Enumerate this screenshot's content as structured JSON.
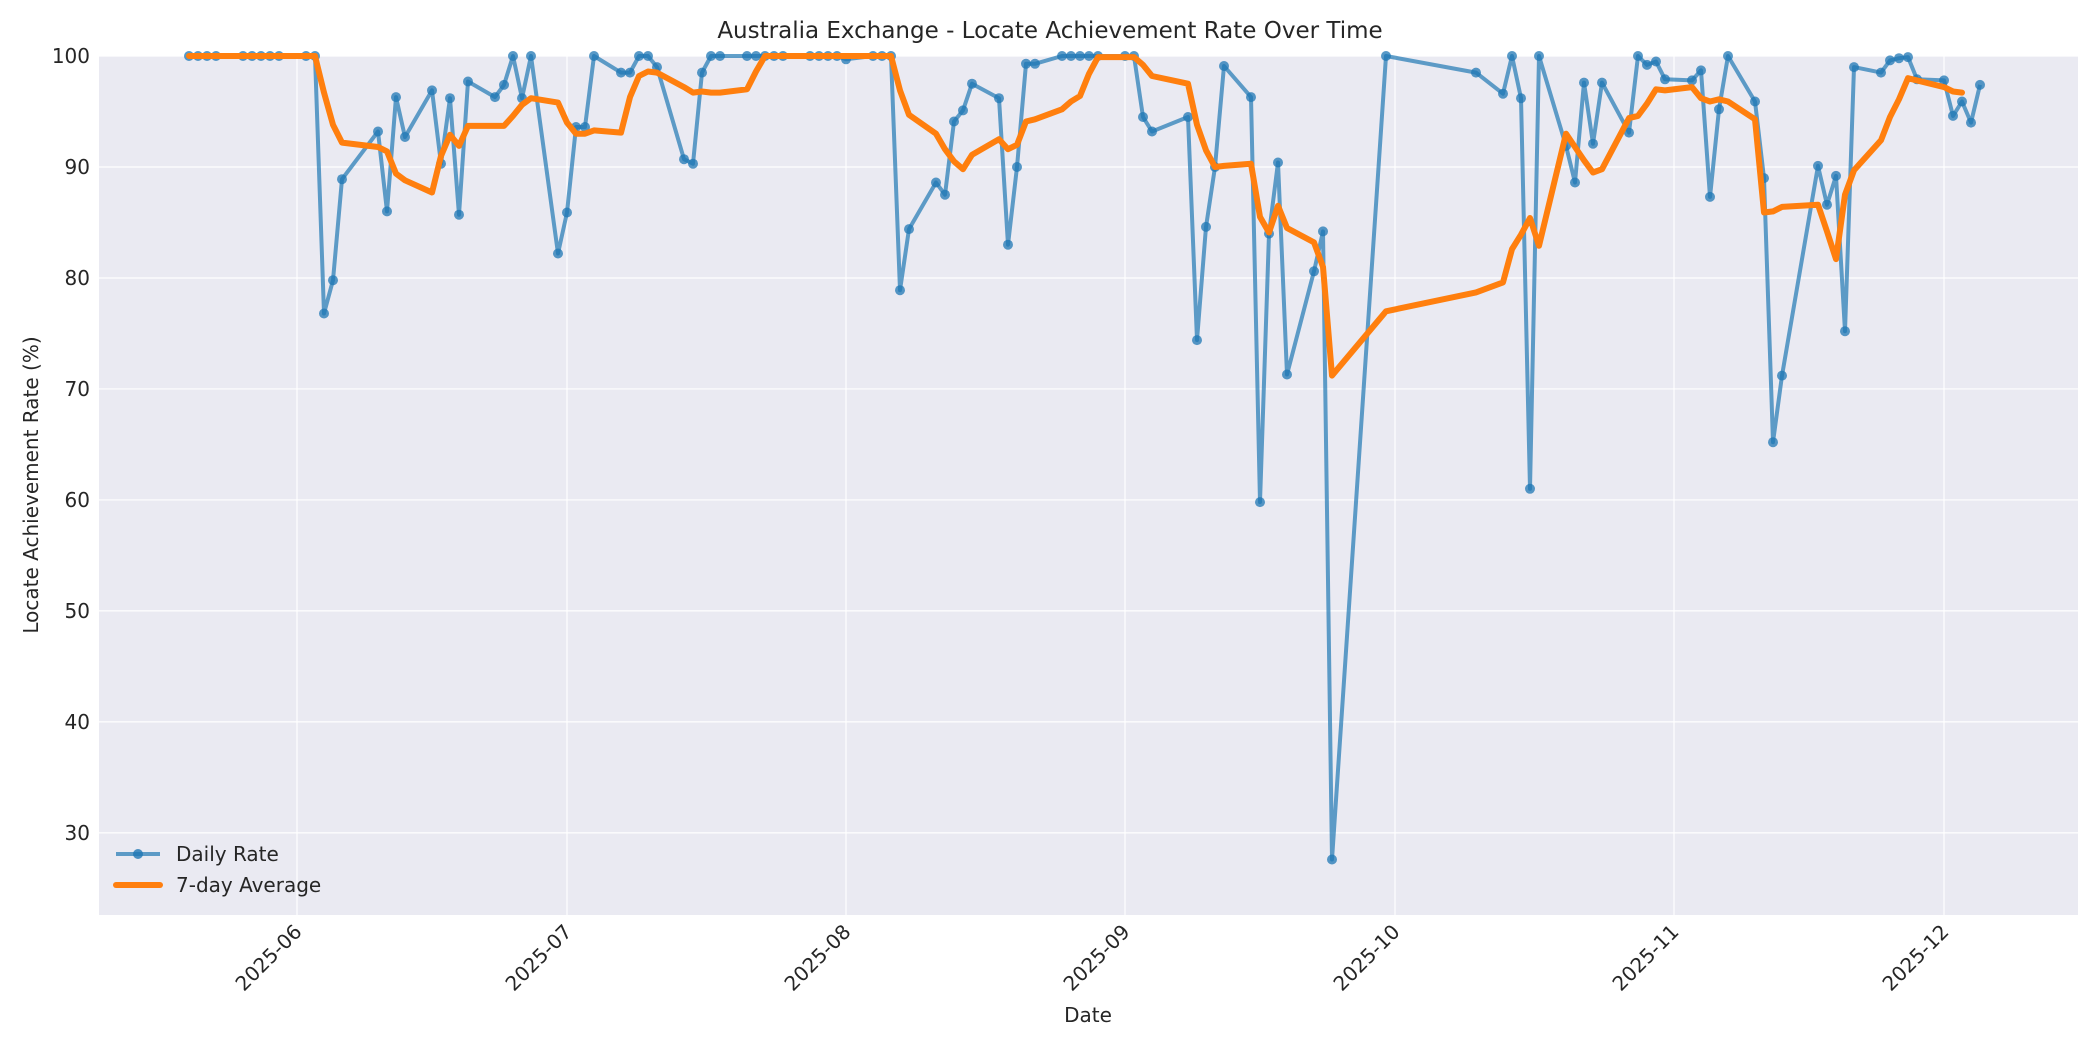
{
  "chart_data": {
    "type": "line",
    "title": "Australia Exchange - Locate Achievement Rate Over Time",
    "xlabel": "Date",
    "ylabel": "Locate Achievement Rate (%)",
    "ylim": [
      22.6,
      100
    ],
    "xlim": [
      "2025-05-11",
      "2025-12-10"
    ],
    "grid": true,
    "legend_position": "lower left",
    "yticks": [
      30,
      40,
      50,
      60,
      70,
      80,
      90,
      100
    ],
    "xticks": [
      "2025-06",
      "2025-07",
      "2025-08",
      "2025-09",
      "2025-10",
      "2025-11",
      "2025-12"
    ],
    "rolling_window": 7,
    "x": [
      "2025-05-20",
      "2025-05-21",
      "2025-05-22",
      "2025-05-23",
      "2025-05-26",
      "2025-05-27",
      "2025-05-28",
      "2025-05-29",
      "2025-05-30",
      "2025-06-02",
      "2025-06-03",
      "2025-06-04",
      "2025-06-05",
      "2025-06-06",
      "2025-06-10",
      "2025-06-11",
      "2025-06-12",
      "2025-06-13",
      "2025-06-16",
      "2025-06-17",
      "2025-06-18",
      "2025-06-19",
      "2025-06-20",
      "2025-06-23",
      "2025-06-24",
      "2025-06-25",
      "2025-06-26",
      "2025-06-27",
      "2025-06-30",
      "2025-07-01",
      "2025-07-02",
      "2025-07-03",
      "2025-07-04",
      "2025-07-07",
      "2025-07-08",
      "2025-07-09",
      "2025-07-10",
      "2025-07-11",
      "2025-07-14",
      "2025-07-15",
      "2025-07-16",
      "2025-07-17",
      "2025-07-18",
      "2025-07-21",
      "2025-07-22",
      "2025-07-23",
      "2025-07-24",
      "2025-07-25",
      "2025-07-28",
      "2025-07-29",
      "2025-07-30",
      "2025-07-31",
      "2025-08-01",
      "2025-08-04",
      "2025-08-05",
      "2025-08-06",
      "2025-08-07",
      "2025-08-08",
      "2025-08-11",
      "2025-08-12",
      "2025-08-13",
      "2025-08-14",
      "2025-08-15",
      "2025-08-18",
      "2025-08-19",
      "2025-08-20",
      "2025-08-21",
      "2025-08-22",
      "2025-08-25",
      "2025-08-26",
      "2025-08-27",
      "2025-08-28",
      "2025-08-29",
      "2025-09-01",
      "2025-09-02",
      "2025-09-03",
      "2025-09-04",
      "2025-09-08",
      "2025-09-09",
      "2025-09-10",
      "2025-09-11",
      "2025-09-12",
      "2025-09-15",
      "2025-09-16",
      "2025-09-17",
      "2025-09-18",
      "2025-09-19",
      "2025-09-22",
      "2025-09-23",
      "2025-09-24",
      "2025-09-30",
      "2025-10-10",
      "2025-10-13",
      "2025-10-14",
      "2025-10-15",
      "2025-10-16",
      "2025-10-17",
      "2025-10-20",
      "2025-10-21",
      "2025-10-22",
      "2025-10-23",
      "2025-10-24",
      "2025-10-27",
      "2025-10-28",
      "2025-10-29",
      "2025-10-30",
      "2025-10-31",
      "2025-11-03",
      "2025-11-04",
      "2025-11-05",
      "2025-11-06",
      "2025-11-07",
      "2025-11-10",
      "2025-11-11",
      "2025-11-12",
      "2025-11-13",
      "2025-11-17",
      "2025-11-18",
      "2025-11-19",
      "2025-11-20",
      "2025-11-21",
      "2025-11-24",
      "2025-11-25",
      "2025-11-26",
      "2025-11-27",
      "2025-11-28",
      "2025-12-01",
      "2025-12-02",
      "2025-12-03",
      "2025-12-04",
      "2025-12-05"
    ],
    "series": [
      {
        "name": "Daily Rate",
        "color": "#1f77b4",
        "marker": "circle",
        "values": [
          100,
          100,
          100,
          100,
          100,
          100,
          100,
          100,
          100,
          100,
          100,
          76.8,
          79.8,
          88.9,
          93.2,
          86.0,
          96.3,
          92.7,
          96.9,
          90.3,
          96.2,
          85.7,
          97.7,
          96.3,
          97.4,
          100,
          96.2,
          100,
          82.2,
          85.9,
          93.6,
          93.6,
          100,
          98.5,
          98.5,
          100,
          100,
          99.0,
          90.7,
          90.3,
          98.5,
          100,
          100,
          100,
          100,
          100,
          100,
          100,
          100,
          100,
          100,
          100,
          99.7,
          100,
          100,
          100,
          78.9,
          84.4,
          88.6,
          87.5,
          94.1,
          95.1,
          97.5,
          96.2,
          83.0,
          90.0,
          99.3,
          99.3,
          100,
          100,
          100,
          100,
          100,
          100,
          100,
          94.5,
          93.2,
          94.5,
          74.4,
          84.6,
          90.0,
          99.1,
          96.3,
          59.8,
          84.0,
          90.4,
          71.3,
          80.6,
          84.2,
          27.6,
          100,
          98.5,
          96.6,
          100,
          96.2,
          61.0,
          100,
          91.9,
          88.6,
          97.6,
          92.1,
          97.6,
          93.1,
          100,
          99.2,
          99.5,
          97.9,
          97.8,
          98.7,
          87.3,
          95.2,
          100,
          95.9,
          89.0,
          65.2,
          71.2,
          90.1,
          86.6,
          89.2,
          75.2,
          99.0,
          98.5,
          99.6,
          99.8,
          99.9,
          97.9,
          97.8,
          94.6,
          95.9,
          94.0,
          97.4
        ]
      },
      {
        "name": "7-day Average",
        "color": "#ff7f0e",
        "values": [
          100,
          100,
          100,
          100,
          100,
          100,
          100,
          100,
          100,
          100,
          100,
          96.7,
          93.8,
          92.2,
          91.8,
          91.4,
          89.4,
          88.8,
          87.7,
          91.0,
          92.9,
          91.9,
          93.7,
          93.7,
          93.7,
          94.6,
          95.6,
          96.2,
          95.8,
          94.0,
          93.0,
          93.0,
          93.3,
          93.1,
          96.3,
          98.2,
          98.6,
          98.5,
          97.2,
          96.7,
          96.8,
          96.7,
          96.7,
          97.0,
          98.6,
          100,
          100,
          100,
          100,
          100,
          100,
          100,
          100,
          100,
          100,
          100,
          96.9,
          94.7,
          93.0,
          91.6,
          90.5,
          89.8,
          91.1,
          92.5,
          91.6,
          92.0,
          94.1,
          94.3,
          95.2,
          95.9,
          96.4,
          98.4,
          99.9,
          99.9,
          99.9,
          99.2,
          98.2,
          97.5,
          93.8,
          91.5,
          90.0,
          90.1,
          90.3,
          85.5,
          84.1,
          86.5,
          84.5,
          83.2,
          81.0,
          71.2,
          77.0,
          78.7,
          79.6,
          82.6,
          83.9,
          85.4,
          82.9,
          93.0,
          91.8,
          90.6,
          89.5,
          89.8,
          94.4,
          94.6,
          95.7,
          97.0,
          96.9,
          97.2,
          96.2,
          95.9,
          96.1,
          95.9,
          94.3,
          85.9,
          86.0,
          86.4,
          86.6,
          84.2,
          81.7,
          87.5,
          89.7,
          92.4,
          94.5,
          96.1,
          98.0,
          97.8,
          97.2,
          96.8,
          96.7
        ]
      }
    ]
  },
  "legend": {
    "items": [
      {
        "label": "Daily Rate"
      },
      {
        "label": "7-day Average"
      }
    ]
  }
}
